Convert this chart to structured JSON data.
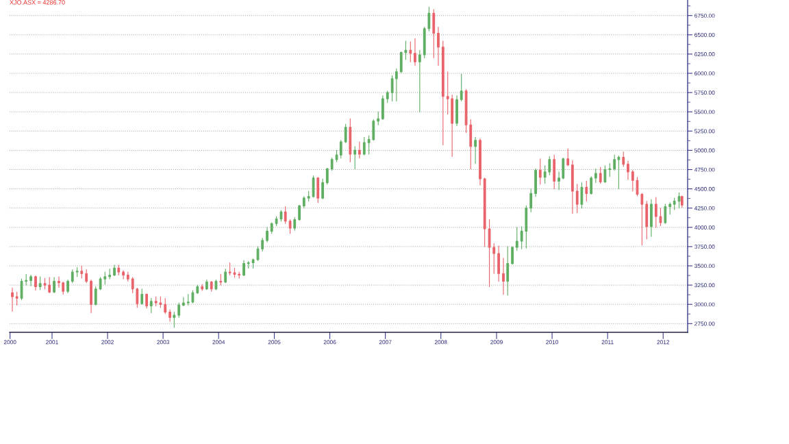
{
  "chart_data": {
    "type": "candlestick",
    "title": "XJO.ASX = 4286.70",
    "x": [
      "2000-04-15",
      "2000-05-15",
      "2000-06-15",
      "2000-07-15",
      "2000-08-15",
      "2000-09-15",
      "2000-10-15",
      "2000-11-15",
      "2000-12-15",
      "2001-01-15",
      "2001-02-15",
      "2001-03-15",
      "2001-04-15",
      "2001-05-15",
      "2001-06-15",
      "2001-07-15",
      "2001-08-15",
      "2001-09-15",
      "2001-10-15",
      "2001-11-15",
      "2001-12-15",
      "2002-01-15",
      "2002-02-15",
      "2002-03-15",
      "2002-04-15",
      "2002-05-15",
      "2002-06-15",
      "2002-07-15",
      "2002-08-15",
      "2002-09-15",
      "2002-10-15",
      "2002-11-15",
      "2002-12-15",
      "2003-01-15",
      "2003-02-15",
      "2003-03-15",
      "2003-04-15",
      "2003-05-15",
      "2003-06-15",
      "2003-07-15",
      "2003-08-15",
      "2003-09-15",
      "2003-10-15",
      "2003-11-15",
      "2003-12-15",
      "2004-01-15",
      "2004-02-15",
      "2004-03-15",
      "2004-04-15",
      "2004-05-15",
      "2004-06-15",
      "2004-07-15",
      "2004-08-15",
      "2004-09-15",
      "2004-10-15",
      "2004-11-15",
      "2004-12-15",
      "2005-01-15",
      "2005-02-15",
      "2005-03-15",
      "2005-04-15",
      "2005-05-15",
      "2005-06-15",
      "2005-07-15",
      "2005-08-15",
      "2005-09-15",
      "2005-10-15",
      "2005-11-15",
      "2005-12-15",
      "2006-01-15",
      "2006-02-15",
      "2006-03-15",
      "2006-04-15",
      "2006-05-15",
      "2006-06-15",
      "2006-07-15",
      "2006-08-15",
      "2006-09-15",
      "2006-10-15",
      "2006-11-15",
      "2006-12-15",
      "2007-01-15",
      "2007-02-15",
      "2007-03-15",
      "2007-04-15",
      "2007-05-15",
      "2007-06-15",
      "2007-07-15",
      "2007-08-15",
      "2007-09-15",
      "2007-10-15",
      "2007-11-15",
      "2007-12-15",
      "2008-01-15",
      "2008-02-15",
      "2008-03-15",
      "2008-04-15",
      "2008-05-15",
      "2008-06-15",
      "2008-07-15",
      "2008-08-15",
      "2008-09-15",
      "2008-10-15",
      "2008-11-15",
      "2008-12-15",
      "2009-01-15",
      "2009-02-15",
      "2009-03-15",
      "2009-04-15",
      "2009-05-15",
      "2009-06-15",
      "2009-07-15",
      "2009-08-15",
      "2009-09-15",
      "2009-10-15",
      "2009-11-15",
      "2009-12-15",
      "2010-01-15",
      "2010-02-15",
      "2010-03-15",
      "2010-04-15",
      "2010-05-15",
      "2010-06-15",
      "2010-07-15",
      "2010-08-15",
      "2010-09-15",
      "2010-10-15",
      "2010-11-15",
      "2010-12-15",
      "2011-01-15",
      "2011-02-15",
      "2011-03-15",
      "2011-04-15",
      "2011-05-15",
      "2011-06-15",
      "2011-07-15",
      "2011-08-15",
      "2011-09-15",
      "2011-10-15",
      "2011-11-15",
      "2011-12-15",
      "2012-01-15",
      "2012-02-15",
      "2012-03-15",
      "2012-04-15",
      "2012-05-04"
    ],
    "ohlc": [
      [
        3150,
        3215,
        2910,
        3100
      ],
      [
        3100,
        3160,
        2990,
        3080
      ],
      [
        3080,
        3330,
        3060,
        3300
      ],
      [
        3300,
        3390,
        3250,
        3310
      ],
      [
        3310,
        3380,
        3240,
        3360
      ],
      [
        3360,
        3370,
        3185,
        3230
      ],
      [
        3230,
        3360,
        3190,
        3270
      ],
      [
        3270,
        3340,
        3200,
        3250
      ],
      [
        3250,
        3350,
        3150,
        3160
      ],
      [
        3160,
        3350,
        3150,
        3300
      ],
      [
        3300,
        3360,
        3220,
        3280
      ],
      [
        3280,
        3290,
        3130,
        3170
      ],
      [
        3170,
        3320,
        3150,
        3300
      ],
      [
        3300,
        3450,
        3280,
        3420
      ],
      [
        3420,
        3480,
        3360,
        3430
      ],
      [
        3430,
        3500,
        3340,
        3400
      ],
      [
        3400,
        3450,
        3280,
        3300
      ],
      [
        3300,
        3320,
        2890,
        3000
      ],
      [
        3000,
        3230,
        2990,
        3200
      ],
      [
        3200,
        3350,
        3190,
        3330
      ],
      [
        3330,
        3420,
        3260,
        3360
      ],
      [
        3360,
        3460,
        3330,
        3380
      ],
      [
        3380,
        3510,
        3370,
        3470
      ],
      [
        3470,
        3510,
        3380,
        3420
      ],
      [
        3420,
        3440,
        3330,
        3380
      ],
      [
        3380,
        3420,
        3300,
        3330
      ],
      [
        3330,
        3350,
        3150,
        3200
      ],
      [
        3200,
        3210,
        2960,
        3010
      ],
      [
        3010,
        3200,
        3000,
        3130
      ],
      [
        3130,
        3140,
        2950,
        2980
      ],
      [
        2980,
        3080,
        2890,
        3040
      ],
      [
        3040,
        3100,
        2980,
        3020
      ],
      [
        3020,
        3100,
        2960,
        3000
      ],
      [
        3000,
        3080,
        2880,
        2900
      ],
      [
        2900,
        2930,
        2780,
        2830
      ],
      [
        2830,
        2900,
        2700,
        2860
      ],
      [
        2860,
        3020,
        2830,
        2990
      ],
      [
        2990,
        3090,
        2980,
        3020
      ],
      [
        3020,
        3130,
        2990,
        3030
      ],
      [
        3030,
        3180,
        3020,
        3150
      ],
      [
        3150,
        3250,
        3140,
        3230
      ],
      [
        3230,
        3260,
        3180,
        3200
      ],
      [
        3200,
        3320,
        3190,
        3290
      ],
      [
        3290,
        3300,
        3170,
        3200
      ],
      [
        3200,
        3320,
        3190,
        3300
      ],
      [
        3300,
        3390,
        3250,
        3290
      ],
      [
        3290,
        3460,
        3280,
        3420
      ],
      [
        3420,
        3540,
        3380,
        3410
      ],
      [
        3410,
        3470,
        3350,
        3390
      ],
      [
        3390,
        3420,
        3340,
        3380
      ],
      [
        3380,
        3570,
        3370,
        3530
      ],
      [
        3530,
        3560,
        3470,
        3540
      ],
      [
        3540,
        3590,
        3470,
        3580
      ],
      [
        3580,
        3750,
        3570,
        3720
      ],
      [
        3720,
        3860,
        3690,
        3830
      ],
      [
        3830,
        4000,
        3810,
        3950
      ],
      [
        3950,
        4060,
        3920,
        4050
      ],
      [
        4050,
        4140,
        4020,
        4110
      ],
      [
        4110,
        4220,
        4080,
        4200
      ],
      [
        4200,
        4270,
        4050,
        4080
      ],
      [
        4080,
        4100,
        3920,
        3990
      ],
      [
        3990,
        4130,
        3960,
        4100
      ],
      [
        4100,
        4290,
        4090,
        4280
      ],
      [
        4280,
        4400,
        4250,
        4380
      ],
      [
        4380,
        4470,
        4340,
        4400
      ],
      [
        4400,
        4670,
        4390,
        4640
      ],
      [
        4640,
        4650,
        4320,
        4380
      ],
      [
        4380,
        4630,
        4370,
        4580
      ],
      [
        4580,
        4770,
        4560,
        4760
      ],
      [
        4760,
        4900,
        4740,
        4880
      ],
      [
        4880,
        5000,
        4850,
        4940
      ],
      [
        4940,
        5130,
        4900,
        5110
      ],
      [
        5110,
        5340,
        5100,
        5300
      ],
      [
        5300,
        5410,
        4850,
        4950
      ],
      [
        4950,
        5050,
        4760,
        5000
      ],
      [
        5000,
        5110,
        4900,
        4950
      ],
      [
        4950,
        5170,
        4940,
        5100
      ],
      [
        5100,
        5190,
        4950,
        5140
      ],
      [
        5140,
        5400,
        5130,
        5380
      ],
      [
        5380,
        5500,
        5330,
        5410
      ],
      [
        5410,
        5710,
        5400,
        5670
      ],
      [
        5670,
        5770,
        5620,
        5750
      ],
      [
        5750,
        5970,
        5640,
        5930
      ],
      [
        5930,
        6060,
        5640,
        6020
      ],
      [
        6020,
        6280,
        6010,
        6270
      ],
      [
        6270,
        6420,
        6180,
        6300
      ],
      [
        6300,
        6410,
        6150,
        6260
      ],
      [
        6260,
        6450,
        6100,
        6150
      ],
      [
        6150,
        6300,
        5500,
        6240
      ],
      [
        6240,
        6600,
        6200,
        6580
      ],
      [
        6580,
        6860,
        6550,
        6780
      ],
      [
        6780,
        6830,
        6200,
        6520
      ],
      [
        6520,
        6600,
        6100,
        6340
      ],
      [
        6340,
        6420,
        5070,
        5700
      ],
      [
        5700,
        6020,
        5470,
        5670
      ],
      [
        5670,
        5720,
        4920,
        5350
      ],
      [
        5350,
        5710,
        5320,
        5660
      ],
      [
        5660,
        5990,
        5640,
        5770
      ],
      [
        5770,
        5790,
        5230,
        5330
      ],
      [
        5330,
        5400,
        4760,
        5050
      ],
      [
        5050,
        5170,
        4830,
        5130
      ],
      [
        5130,
        5150,
        4550,
        4630
      ],
      [
        4630,
        4640,
        3750,
        3980
      ],
      [
        3980,
        4100,
        3230,
        3740
      ],
      [
        3740,
        3790,
        3400,
        3660
      ],
      [
        3660,
        3760,
        3300,
        3400
      ],
      [
        3400,
        3600,
        3130,
        3300
      ],
      [
        3300,
        3750,
        3120,
        3530
      ],
      [
        3530,
        3750,
        3520,
        3740
      ],
      [
        3740,
        4000,
        3700,
        3820
      ],
      [
        3820,
        4010,
        3720,
        3950
      ],
      [
        3950,
        4280,
        3730,
        4250
      ],
      [
        4250,
        4500,
        4200,
        4440
      ],
      [
        4440,
        4760,
        4400,
        4740
      ],
      [
        4740,
        4890,
        4560,
        4650
      ],
      [
        4650,
        4800,
        4570,
        4720
      ],
      [
        4720,
        4920,
        4680,
        4880
      ],
      [
        4880,
        4940,
        4500,
        4600
      ],
      [
        4600,
        4720,
        4490,
        4640
      ],
      [
        4640,
        4900,
        4630,
        4890
      ],
      [
        4890,
        5020,
        4800,
        4810
      ],
      [
        4810,
        4870,
        4180,
        4470
      ],
      [
        4470,
        4560,
        4190,
        4300
      ],
      [
        4300,
        4580,
        4250,
        4520
      ],
      [
        4520,
        4600,
        4340,
        4440
      ],
      [
        4440,
        4660,
        4430,
        4640
      ],
      [
        4640,
        4760,
        4580,
        4700
      ],
      [
        4700,
        4780,
        4570,
        4590
      ],
      [
        4590,
        4800,
        4580,
        4750
      ],
      [
        4750,
        4830,
        4660,
        4760
      ],
      [
        4760,
        4940,
        4740,
        4880
      ],
      [
        4880,
        4930,
        4500,
        4910
      ],
      [
        4910,
        4980,
        4790,
        4820
      ],
      [
        4820,
        4860,
        4620,
        4720
      ],
      [
        4720,
        4740,
        4470,
        4610
      ],
      [
        4610,
        4650,
        4410,
        4430
      ],
      [
        4430,
        4440,
        3770,
        4300
      ],
      [
        4300,
        4340,
        3850,
        4010
      ],
      [
        4010,
        4360,
        3880,
        4300
      ],
      [
        4300,
        4390,
        4000,
        4140
      ],
      [
        4140,
        4250,
        4020,
        4060
      ],
      [
        4060,
        4300,
        4050,
        4270
      ],
      [
        4270,
        4320,
        4170,
        4300
      ],
      [
        4300,
        4380,
        4230,
        4340
      ],
      [
        4340,
        4450,
        4250,
        4400
      ],
      [
        4400,
        4410,
        4260,
        4290
      ]
    ],
    "colors": [
      "#e9636b",
      "#e9636b",
      "#5fae62",
      "#5fae62",
      "#5fae62",
      "#e9636b",
      "#5fae62",
      "#e9636b",
      "#e9636b",
      "#5fae62",
      "#e9636b",
      "#e9636b",
      "#5fae62",
      "#5fae62",
      "#5fae62",
      "#e9636b",
      "#e9636b",
      "#e9636b",
      "#5fae62",
      "#5fae62",
      "#5fae62",
      "#5fae62",
      "#5fae62",
      "#e9636b",
      "#e9636b",
      "#e9636b",
      "#e9636b",
      "#e9636b",
      "#5fae62",
      "#e9636b",
      "#5fae62",
      "#e9636b",
      "#e9636b",
      "#e9636b",
      "#e9636b",
      "#5fae62",
      "#5fae62",
      "#5fae62",
      "#5fae62",
      "#5fae62",
      "#5fae62",
      "#e9636b",
      "#5fae62",
      "#e9636b",
      "#5fae62",
      "#e9636b",
      "#5fae62",
      "#e9636b",
      "#e9636b",
      "#e9636b",
      "#5fae62",
      "#5fae62",
      "#5fae62",
      "#5fae62",
      "#5fae62",
      "#5fae62",
      "#5fae62",
      "#5fae62",
      "#5fae62",
      "#e9636b",
      "#e9636b",
      "#5fae62",
      "#5fae62",
      "#5fae62",
      "#5fae62",
      "#5fae62",
      "#e9636b",
      "#5fae62",
      "#5fae62",
      "#5fae62",
      "#5fae62",
      "#5fae62",
      "#5fae62",
      "#e9636b",
      "#5fae62",
      "#e9636b",
      "#5fae62",
      "#5fae62",
      "#5fae62",
      "#5fae62",
      "#5fae62",
      "#5fae62",
      "#5fae62",
      "#5fae62",
      "#5fae62",
      "#5fae62",
      "#e9636b",
      "#e9636b",
      "#5fae62",
      "#5fae62",
      "#5fae62",
      "#e9636b",
      "#e9636b",
      "#e9636b",
      "#e9636b",
      "#e9636b",
      "#5fae62",
      "#5fae62",
      "#e9636b",
      "#e9636b",
      "#5fae62",
      "#e9636b",
      "#e9636b",
      "#e9636b",
      "#e9636b",
      "#e9636b",
      "#e9636b",
      "#5fae62",
      "#5fae62",
      "#5fae62",
      "#5fae62",
      "#5fae62",
      "#5fae62",
      "#5fae62",
      "#e9636b",
      "#5fae62",
      "#5fae62",
      "#e9636b",
      "#5fae62",
      "#5fae62",
      "#e9636b",
      "#e9636b",
      "#e9636b",
      "#5fae62",
      "#e9636b",
      "#5fae62",
      "#5fae62",
      "#e9636b",
      "#5fae62",
      "#5fae62",
      "#5fae62",
      "#5fae62",
      "#e9636b",
      "#e9636b",
      "#e9636b",
      "#e9636b",
      "#e9636b",
      "#e9636b",
      "#5fae62",
      "#e9636b",
      "#e9636b",
      "#5fae62",
      "#5fae62",
      "#5fae62",
      "#5fae62",
      "#e9636b"
    ],
    "xlim": [
      "2000-03-28",
      "2012-06-10"
    ],
    "xticks": [
      {
        "value": "2000-03-31",
        "label": "2000"
      },
      "2001",
      "2002",
      "2003",
      "2004",
      "2005",
      "2006",
      "2007",
      "2008",
      "2009",
      "2010",
      "2011",
      "2012"
    ],
    "ylim": [
      2637,
      6952
    ],
    "yticks": [
      {
        "value": 2750,
        "label": "2750.00"
      },
      {
        "value": 2875,
        "label": null
      },
      {
        "value": 3000,
        "label": "3000.00"
      },
      {
        "value": 3125,
        "label": null
      },
      {
        "value": 3250,
        "label": "3250.00"
      },
      {
        "value": 3375,
        "label": null
      },
      {
        "value": 3500,
        "label": "3500.00"
      },
      {
        "value": 3625,
        "label": null
      },
      {
        "value": 3750,
        "label": "3750.00"
      },
      {
        "value": 3875,
        "label": null
      },
      {
        "value": 4000,
        "label": "4000.00"
      },
      {
        "value": 4125,
        "label": null
      },
      {
        "value": 4250,
        "label": "4250.00"
      },
      {
        "value": 4375,
        "label": null
      },
      {
        "value": 4500,
        "label": "4500.00"
      },
      {
        "value": 4625,
        "label": null
      },
      {
        "value": 4750,
        "label": "4750.00"
      },
      {
        "value": 4875,
        "label": null
      },
      {
        "value": 5000,
        "label": "5000.00"
      },
      {
        "value": 5125,
        "label": null
      },
      {
        "value": 5250,
        "label": "5250.00"
      },
      {
        "value": 5375,
        "label": null
      },
      {
        "value": 5500,
        "label": "5500.00"
      },
      {
        "value": 5625,
        "label": null
      },
      {
        "value": 5750,
        "label": "5750.00"
      },
      {
        "value": 5875,
        "label": null
      },
      {
        "value": 6000,
        "label": "6000.00"
      },
      {
        "value": 6125,
        "label": null
      },
      {
        "value": 6250,
        "label": "6250.00"
      },
      {
        "value": 6375,
        "label": null
      },
      {
        "value": 6500,
        "label": "6500.00"
      },
      {
        "value": 6625,
        "label": null
      },
      {
        "value": 6750,
        "label": "6750.00"
      },
      {
        "value": 6875,
        "label": null
      }
    ],
    "grid": "y"
  }
}
